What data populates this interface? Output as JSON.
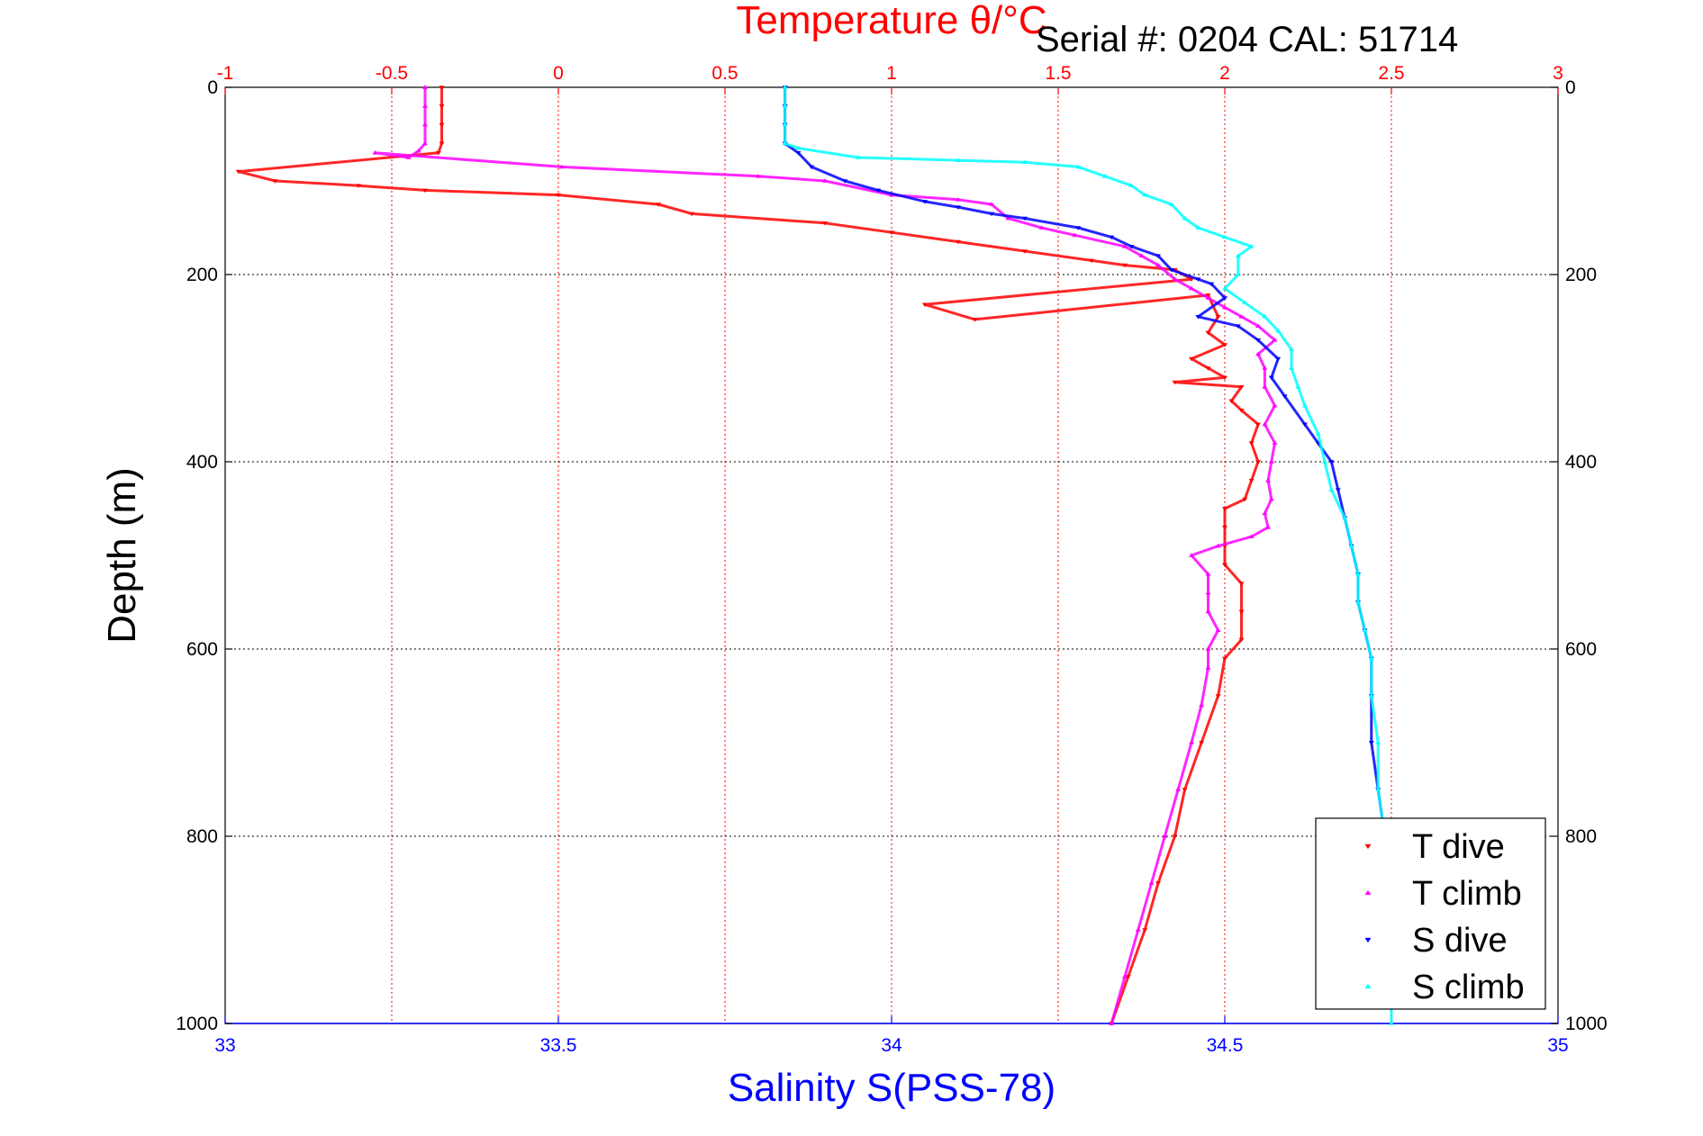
{
  "chart_data": {
    "type": "scatter",
    "title": "Temperature θ/°C",
    "annotation": "Serial #: 0204  CAL: 51714",
    "xlabel_top": "Temperature θ/°C",
    "xlabel_bottom": "Salinity S(PSS-78)",
    "ylabel": "Depth (m)",
    "temperature_axis": {
      "lim": [
        -1,
        3
      ],
      "ticks": [
        "-1",
        "-0.5",
        "0",
        "0.5",
        "1",
        "1.5",
        "2",
        "2.5",
        "3"
      ],
      "color": "#ff0000"
    },
    "salinity_axis": {
      "lim": [
        33,
        35
      ],
      "ticks": [
        "33",
        "33.5",
        "34",
        "34.5",
        "35"
      ],
      "color": "#0000ff"
    },
    "depth_axis": {
      "lim": [
        0,
        1000
      ],
      "reversed": true,
      "ticks": [
        "0",
        "200",
        "400",
        "600",
        "800",
        "1000"
      ]
    },
    "grid": true,
    "legend_placement": "bottom-right",
    "legend": [
      {
        "label": "T dive",
        "color": "#ff0000"
      },
      {
        "label": "T climb",
        "color": "#ff00ff"
      },
      {
        "label": "S dive",
        "color": "#0000ff"
      },
      {
        "label": "S climb",
        "color": "#00ffff"
      }
    ],
    "series": [
      {
        "name": "T dive",
        "axis": "temperature",
        "color": "#ff0000",
        "marker": "triangle-down",
        "points": [
          [
            -0.35,
            0
          ],
          [
            -0.35,
            20
          ],
          [
            -0.35,
            40
          ],
          [
            -0.35,
            60
          ],
          [
            -0.36,
            70
          ],
          [
            -0.96,
            90
          ],
          [
            -0.85,
            100
          ],
          [
            -0.6,
            105
          ],
          [
            -0.4,
            110
          ],
          [
            0,
            115
          ],
          [
            0.3,
            125
          ],
          [
            0.4,
            135
          ],
          [
            0.8,
            145
          ],
          [
            1.0,
            155
          ],
          [
            1.2,
            165
          ],
          [
            1.4,
            175
          ],
          [
            1.6,
            185
          ],
          [
            1.7,
            190
          ],
          [
            1.85,
            195
          ],
          [
            1.9,
            205
          ],
          [
            1.1,
            232
          ],
          [
            1.25,
            248
          ],
          [
            1.95,
            222
          ],
          [
            1.98,
            245
          ],
          [
            1.95,
            262
          ],
          [
            2.0,
            275
          ],
          [
            1.9,
            290
          ],
          [
            1.95,
            300
          ],
          [
            2.0,
            310
          ],
          [
            1.85,
            315
          ],
          [
            2.05,
            320
          ],
          [
            2.02,
            335
          ],
          [
            2.05,
            345
          ],
          [
            2.1,
            360
          ],
          [
            2.08,
            380
          ],
          [
            2.1,
            400
          ],
          [
            2.08,
            420
          ],
          [
            2.06,
            440
          ],
          [
            2.0,
            450
          ],
          [
            2.0,
            470
          ],
          [
            2.0,
            490
          ],
          [
            2.0,
            510
          ],
          [
            2.05,
            530
          ],
          [
            2.05,
            560
          ],
          [
            2.05,
            590
          ],
          [
            2.0,
            610
          ],
          [
            1.98,
            650
          ],
          [
            1.93,
            700
          ],
          [
            1.88,
            750
          ],
          [
            1.85,
            800
          ],
          [
            1.8,
            850
          ],
          [
            1.76,
            900
          ],
          [
            1.71,
            950
          ],
          [
            1.66,
            1000
          ]
        ]
      },
      {
        "name": "T climb",
        "axis": "temperature",
        "color": "#ff00ff",
        "marker": "triangle-up",
        "points": [
          [
            -0.4,
            0
          ],
          [
            -0.4,
            20
          ],
          [
            -0.4,
            40
          ],
          [
            -0.4,
            60
          ],
          [
            -0.42,
            68
          ],
          [
            -0.45,
            75
          ],
          [
            -0.55,
            70
          ],
          [
            0.01,
            85
          ],
          [
            0.6,
            95
          ],
          [
            0.8,
            100
          ],
          [
            1.0,
            115
          ],
          [
            1.2,
            120
          ],
          [
            1.3,
            125
          ],
          [
            1.35,
            140
          ],
          [
            1.45,
            150
          ],
          [
            1.55,
            158
          ],
          [
            1.7,
            170
          ],
          [
            1.75,
            180
          ],
          [
            1.8,
            190
          ],
          [
            1.85,
            205
          ],
          [
            1.9,
            215
          ],
          [
            1.95,
            225
          ],
          [
            2.0,
            235
          ],
          [
            2.05,
            245
          ],
          [
            2.1,
            255
          ],
          [
            2.15,
            270
          ],
          [
            2.1,
            285
          ],
          [
            2.12,
            300
          ],
          [
            2.12,
            320
          ],
          [
            2.15,
            340
          ],
          [
            2.12,
            360
          ],
          [
            2.15,
            380
          ],
          [
            2.14,
            400
          ],
          [
            2.13,
            420
          ],
          [
            2.14,
            440
          ],
          [
            2.12,
            455
          ],
          [
            2.13,
            470
          ],
          [
            2.08,
            480
          ],
          [
            1.98,
            490
          ],
          [
            1.9,
            500
          ],
          [
            1.95,
            520
          ],
          [
            1.95,
            540
          ],
          [
            1.95,
            560
          ],
          [
            1.98,
            580
          ],
          [
            1.95,
            600
          ],
          [
            1.95,
            620
          ],
          [
            1.93,
            660
          ],
          [
            1.9,
            700
          ],
          [
            1.86,
            750
          ],
          [
            1.82,
            800
          ],
          [
            1.78,
            850
          ],
          [
            1.74,
            900
          ],
          [
            1.7,
            950
          ],
          [
            1.66,
            1000
          ]
        ]
      },
      {
        "name": "S dive",
        "axis": "salinity",
        "color": "#0000ff",
        "marker": "triangle-down",
        "points": [
          [
            33.84,
            0
          ],
          [
            33.84,
            20
          ],
          [
            33.84,
            40
          ],
          [
            33.84,
            60
          ],
          [
            33.86,
            70
          ],
          [
            33.88,
            85
          ],
          [
            33.93,
            100
          ],
          [
            33.98,
            110
          ],
          [
            34.05,
            122
          ],
          [
            34.1,
            128
          ],
          [
            34.15,
            135
          ],
          [
            34.2,
            140
          ],
          [
            34.28,
            150
          ],
          [
            34.33,
            160
          ],
          [
            34.36,
            170
          ],
          [
            34.4,
            180
          ],
          [
            34.42,
            195
          ],
          [
            34.46,
            205
          ],
          [
            34.48,
            210
          ],
          [
            34.5,
            225
          ],
          [
            34.46,
            245
          ],
          [
            34.52,
            255
          ],
          [
            34.55,
            270
          ],
          [
            34.58,
            290
          ],
          [
            34.57,
            310
          ],
          [
            34.59,
            330
          ],
          [
            34.62,
            360
          ],
          [
            34.64,
            380
          ],
          [
            34.66,
            400
          ],
          [
            34.67,
            430
          ],
          [
            34.68,
            460
          ],
          [
            34.69,
            490
          ],
          [
            34.7,
            520
          ],
          [
            34.7,
            550
          ],
          [
            34.71,
            580
          ],
          [
            34.72,
            610
          ],
          [
            34.72,
            650
          ],
          [
            34.72,
            700
          ],
          [
            34.73,
            750
          ],
          [
            34.74,
            800
          ]
        ]
      },
      {
        "name": "S climb",
        "axis": "salinity",
        "color": "#00ffff",
        "marker": "triangle-up",
        "points": [
          [
            33.84,
            0
          ],
          [
            33.84,
            20
          ],
          [
            33.84,
            40
          ],
          [
            33.84,
            60
          ],
          [
            33.86,
            65
          ],
          [
            33.95,
            75
          ],
          [
            34.1,
            78
          ],
          [
            34.2,
            80
          ],
          [
            34.28,
            85
          ],
          [
            34.32,
            95
          ],
          [
            34.36,
            105
          ],
          [
            34.38,
            115
          ],
          [
            34.42,
            125
          ],
          [
            34.44,
            140
          ],
          [
            34.46,
            150
          ],
          [
            34.5,
            160
          ],
          [
            34.54,
            170
          ],
          [
            34.52,
            180
          ],
          [
            34.52,
            200
          ],
          [
            34.5,
            215
          ],
          [
            34.53,
            230
          ],
          [
            34.56,
            245
          ],
          [
            34.58,
            260
          ],
          [
            34.6,
            280
          ],
          [
            34.6,
            300
          ],
          [
            34.61,
            320
          ],
          [
            34.62,
            340
          ],
          [
            34.64,
            370
          ],
          [
            34.65,
            400
          ],
          [
            34.66,
            430
          ],
          [
            34.68,
            460
          ],
          [
            34.69,
            490
          ],
          [
            34.7,
            520
          ],
          [
            34.7,
            550
          ],
          [
            34.71,
            580
          ],
          [
            34.72,
            610
          ],
          [
            34.72,
            650
          ],
          [
            34.73,
            700
          ],
          [
            34.73,
            750
          ],
          [
            34.74,
            800
          ],
          [
            34.74,
            850
          ],
          [
            34.74,
            900
          ],
          [
            34.75,
            950
          ],
          [
            34.75,
            1000
          ]
        ]
      }
    ]
  }
}
